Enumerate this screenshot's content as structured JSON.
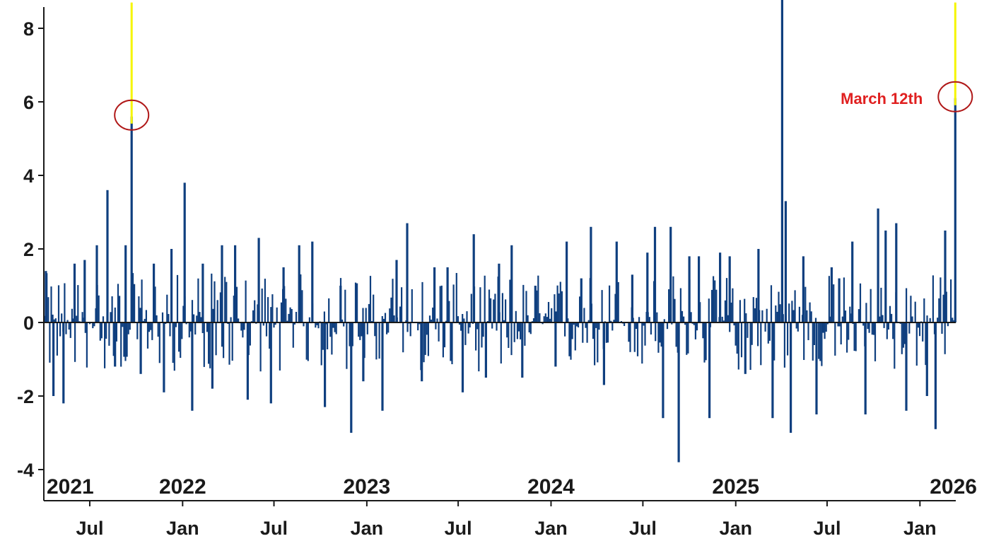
{
  "chart_data": {
    "type": "bar",
    "title": "",
    "xlabel": "",
    "ylabel": "",
    "ylim": [
      -4.2,
      8.7
    ],
    "yticks": [
      -4,
      -2,
      0,
      2,
      4,
      6,
      8
    ],
    "grid": false,
    "legend": "none",
    "x_start": "2021-04-01",
    "x_end": "2026-03-13",
    "month_ticks": [
      {
        "date": "2021-07-01",
        "label": "Jul"
      },
      {
        "date": "2022-01-01",
        "label": "Jan"
      },
      {
        "date": "2022-07-01",
        "label": "Jul"
      },
      {
        "date": "2023-01-01",
        "label": "Jan"
      },
      {
        "date": "2023-07-01",
        "label": "Jul"
      },
      {
        "date": "2024-01-01",
        "label": "Jan"
      },
      {
        "date": "2024-07-01",
        "label": "Jul"
      },
      {
        "date": "2025-01-01",
        "label": "Jan"
      },
      {
        "date": "2025-07-01",
        "label": "Jul"
      },
      {
        "date": "2026-01-01",
        "label": "Jan"
      }
    ],
    "year_labels": [
      {
        "date": "2021-04-01",
        "label": "2021"
      },
      {
        "date": "2022-01-01",
        "label": "2022"
      },
      {
        "date": "2023-01-01",
        "label": "2023"
      },
      {
        "date": "2024-01-01",
        "label": "2024"
      },
      {
        "date": "2025-01-01",
        "label": "2025"
      },
      {
        "date": "2026-01-01",
        "label": "2026"
      }
    ],
    "series": [
      {
        "values_note": "",
        "points": [
          {
            "date": "2021-04-05",
            "value": 1.4
          },
          {
            "date": "2021-04-20",
            "value": -2.0
          },
          {
            "date": "2021-05-10",
            "value": -2.2
          },
          {
            "date": "2021-06-01",
            "value": 1.6
          },
          {
            "date": "2021-06-21",
            "value": 1.7
          },
          {
            "date": "2021-07-15",
            "value": 2.1
          },
          {
            "date": "2021-08-05",
            "value": 3.6
          },
          {
            "date": "2021-08-20",
            "value": -1.2
          },
          {
            "date": "2021-09-10",
            "value": 2.1
          },
          {
            "date": "2021-09-22",
            "value": 5.6
          },
          {
            "date": "2021-10-10",
            "value": -1.4
          },
          {
            "date": "2021-11-05",
            "value": 1.6
          },
          {
            "date": "2021-11-25",
            "value": -1.9
          },
          {
            "date": "2021-12-10",
            "value": 2.0
          },
          {
            "date": "2022-01-05",
            "value": 3.8
          },
          {
            "date": "2022-01-20",
            "value": -2.4
          },
          {
            "date": "2022-02-10",
            "value": 1.6
          },
          {
            "date": "2022-03-01",
            "value": -1.8
          },
          {
            "date": "2022-03-20",
            "value": 2.1
          },
          {
            "date": "2022-04-15",
            "value": 2.1
          },
          {
            "date": "2022-05-10",
            "value": -2.1
          },
          {
            "date": "2022-06-01",
            "value": 2.3
          },
          {
            "date": "2022-06-25",
            "value": -2.2
          },
          {
            "date": "2022-07-20",
            "value": 1.5
          },
          {
            "date": "2022-08-20",
            "value": 2.1
          },
          {
            "date": "2022-09-15",
            "value": 2.2
          },
          {
            "date": "2022-10-10",
            "value": -2.3
          },
          {
            "date": "2022-11-10",
            "value": 1.0
          },
          {
            "date": "2022-12-01",
            "value": -3.0
          },
          {
            "date": "2022-12-25",
            "value": -1.6
          },
          {
            "date": "2023-02-01",
            "value": -2.4
          },
          {
            "date": "2023-03-01",
            "value": 1.7
          },
          {
            "date": "2023-03-22",
            "value": 2.7
          },
          {
            "date": "2023-04-20",
            "value": -1.6
          },
          {
            "date": "2023-05-15",
            "value": 1.5
          },
          {
            "date": "2023-06-10",
            "value": 1.5
          },
          {
            "date": "2023-07-10",
            "value": -1.9
          },
          {
            "date": "2023-08-01",
            "value": 2.4
          },
          {
            "date": "2023-08-25",
            "value": -1.5
          },
          {
            "date": "2023-09-20",
            "value": 1.6
          },
          {
            "date": "2023-10-15",
            "value": 2.1
          },
          {
            "date": "2023-11-05",
            "value": -1.5
          },
          {
            "date": "2023-12-01",
            "value": 1.0
          },
          {
            "date": "2024-01-10",
            "value": -1.2
          },
          {
            "date": "2024-02-01",
            "value": 2.2
          },
          {
            "date": "2024-03-01",
            "value": 1.2
          },
          {
            "date": "2024-03-20",
            "value": 2.6
          },
          {
            "date": "2024-04-15",
            "value": -1.7
          },
          {
            "date": "2024-05-10",
            "value": 2.2
          },
          {
            "date": "2024-06-10",
            "value": 1.3
          },
          {
            "date": "2024-07-10",
            "value": 1.9
          },
          {
            "date": "2024-07-25",
            "value": 2.6
          },
          {
            "date": "2024-08-10",
            "value": -2.6
          },
          {
            "date": "2024-08-25",
            "value": 2.6
          },
          {
            "date": "2024-09-10",
            "value": -3.8
          },
          {
            "date": "2024-10-01",
            "value": 1.8
          },
          {
            "date": "2024-10-20",
            "value": 1.8
          },
          {
            "date": "2024-11-10",
            "value": -2.6
          },
          {
            "date": "2024-12-01",
            "value": 1.9
          },
          {
            "date": "2024-12-20",
            "value": 1.8
          },
          {
            "date": "2025-01-20",
            "value": -1.4
          },
          {
            "date": "2025-02-15",
            "value": 2.0
          },
          {
            "date": "2025-03-15",
            "value": -2.6
          },
          {
            "date": "2025-04-03",
            "value": 9.0
          },
          {
            "date": "2025-04-10",
            "value": 3.3
          },
          {
            "date": "2025-04-20",
            "value": -3.0
          },
          {
            "date": "2025-05-15",
            "value": 1.8
          },
          {
            "date": "2025-06-10",
            "value": -2.5
          },
          {
            "date": "2025-07-10",
            "value": 1.5
          },
          {
            "date": "2025-07-25",
            "value": 1.2
          },
          {
            "date": "2025-08-20",
            "value": 2.2
          },
          {
            "date": "2025-09-15",
            "value": -2.5
          },
          {
            "date": "2025-10-10",
            "value": 3.1
          },
          {
            "date": "2025-10-25",
            "value": 2.5
          },
          {
            "date": "2025-11-15",
            "value": 2.7
          },
          {
            "date": "2025-12-05",
            "value": -2.4
          },
          {
            "date": "2026-01-15",
            "value": -2.0
          },
          {
            "date": "2026-02-01",
            "value": -2.9
          },
          {
            "date": "2026-02-20",
            "value": 2.5
          },
          {
            "date": "2026-03-12",
            "value": 6.1
          }
        ]
      }
    ],
    "highlights": [
      {
        "date": "2021-09-22",
        "value": 5.6
      },
      {
        "date": "2025-04-03",
        "value": 9.0
      },
      {
        "date": "2026-03-12",
        "value": 6.1
      }
    ],
    "annotations": [
      {
        "date": "2026-03-12",
        "value": 6.1,
        "text": "March 12th",
        "color": "#e02020"
      }
    ],
    "colors": {
      "bar": "#0f3f7f",
      "highlight": "#f5f500",
      "annotation": "#e02020",
      "axis": "#1a1a1a",
      "text": "#1a1a1a"
    }
  }
}
